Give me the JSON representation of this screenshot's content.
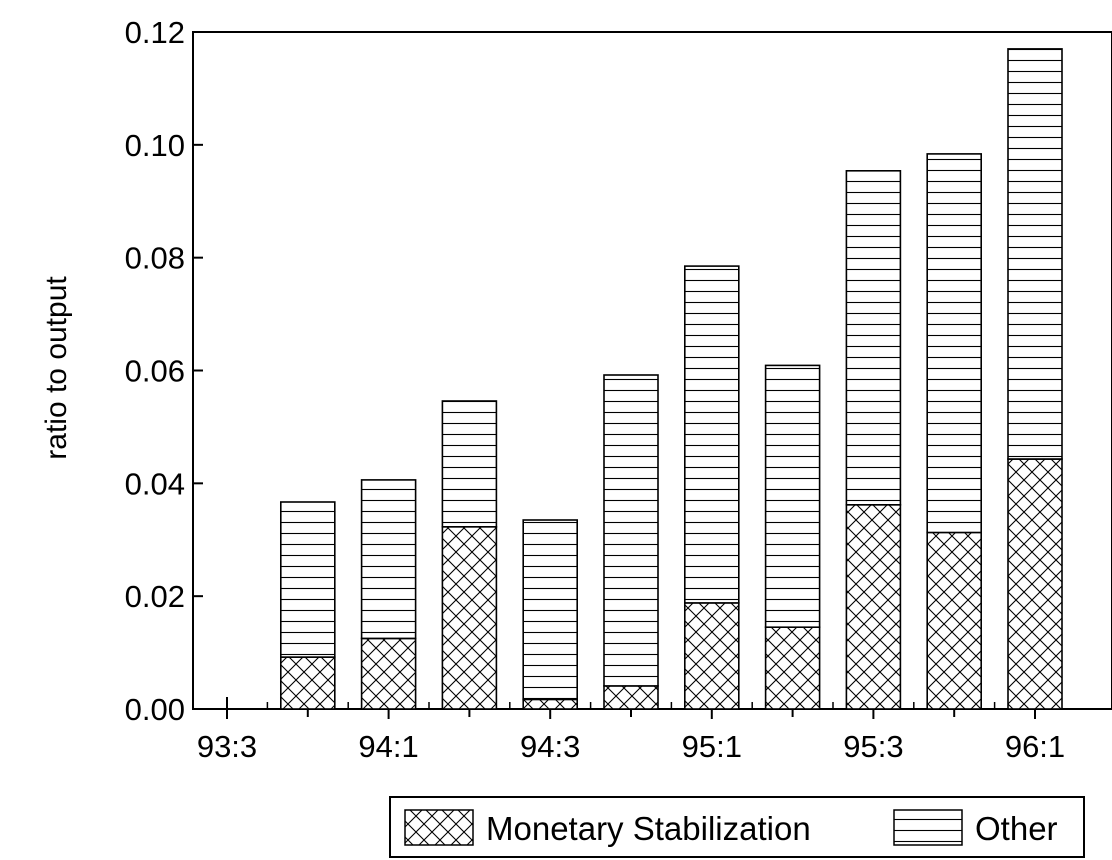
{
  "chart_data": {
    "type": "bar",
    "stacked": true,
    "ylabel": "ratio to output",
    "ylim": [
      0,
      0.12
    ],
    "yticks": [
      "0.00",
      "0.02",
      "0.04",
      "0.06",
      "0.08",
      "0.10",
      "0.12"
    ],
    "categories": [
      "93:3",
      "93:4",
      "94:1",
      "94:2",
      "94:3",
      "94:4",
      "95:1",
      "95:2",
      "95:3",
      "95:4",
      "96:1"
    ],
    "xtick_labels": [
      "93:3",
      "94:1",
      "94:3",
      "95:1",
      "95:3",
      "96:1"
    ],
    "series": [
      {
        "name": "Monetary Stabilization",
        "pattern": "crosshatch",
        "values": [
          0,
          0.0092,
          0.0125,
          0.0323,
          0.0017,
          0.0041,
          0.0188,
          0.0145,
          0.0362,
          0.0313,
          0.0443
        ]
      },
      {
        "name": "Other",
        "pattern": "horizontal-lines",
        "values": [
          0,
          0.0275,
          0.0281,
          0.0223,
          0.0318,
          0.0551,
          0.0597,
          0.0464,
          0.0592,
          0.0671,
          0.0727
        ]
      }
    ],
    "legend_position": "bottom-right",
    "grid": false
  }
}
